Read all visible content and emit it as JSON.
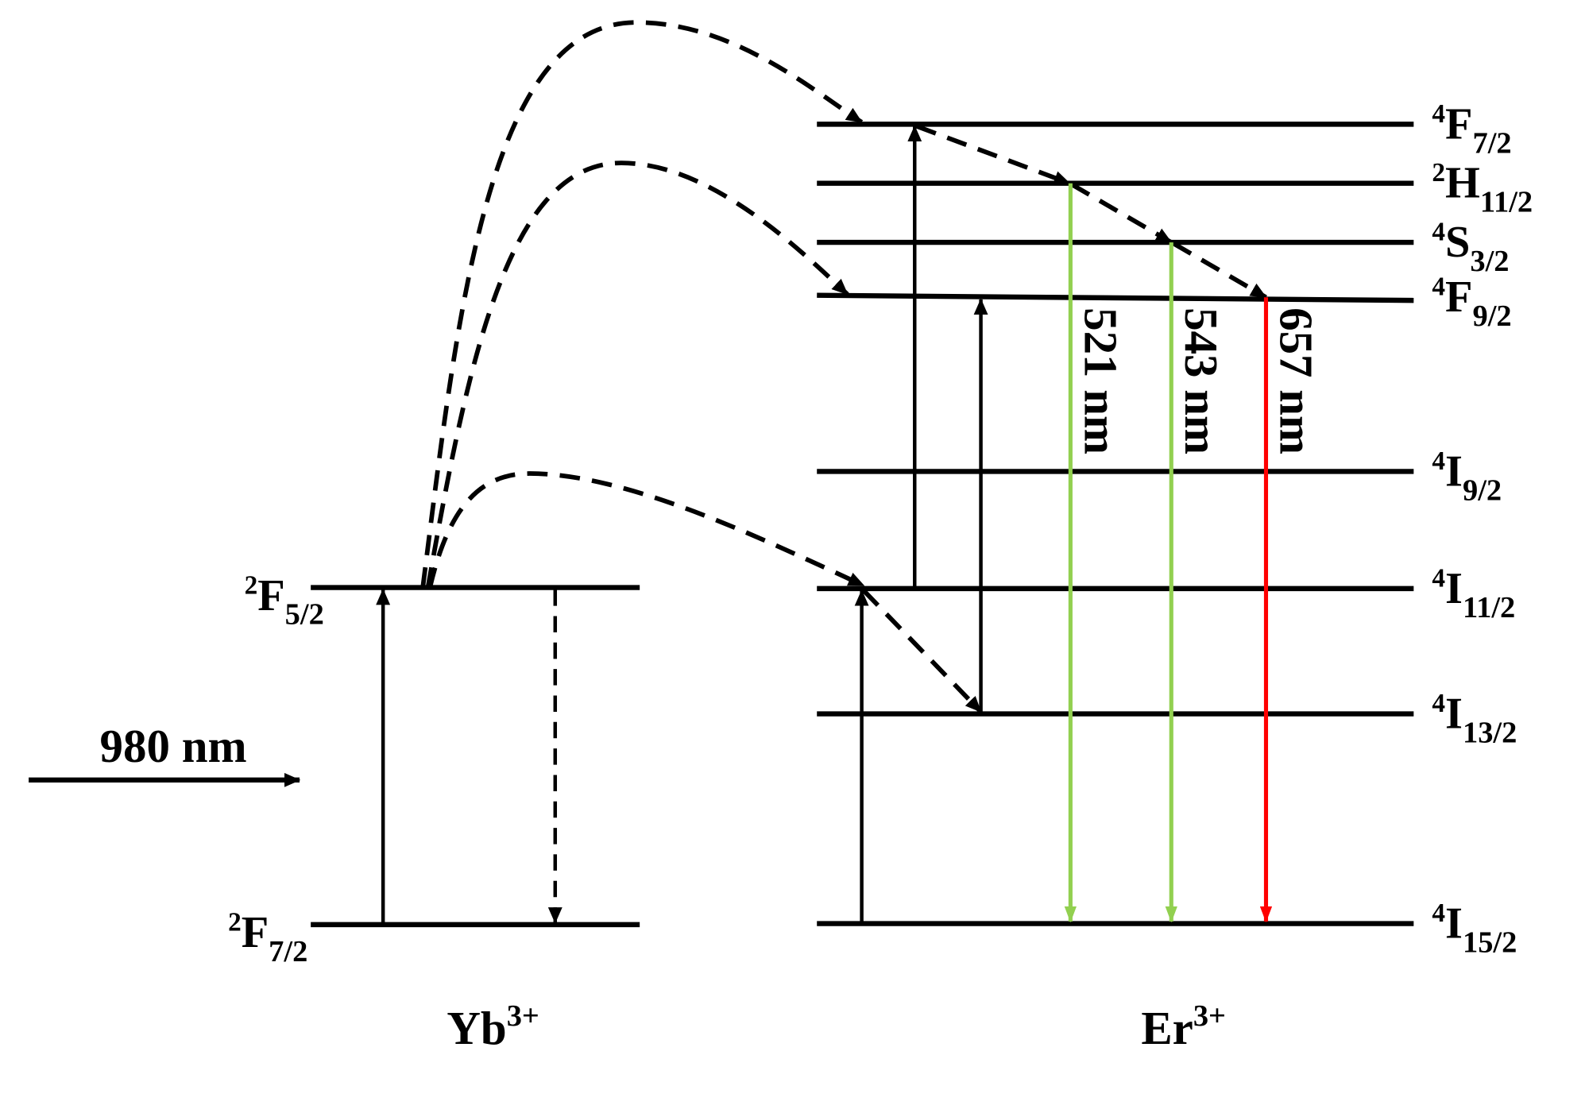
{
  "colors": {
    "line": "#000000",
    "green": "#92d050",
    "red": "#ff0000"
  },
  "yb": {
    "ion": {
      "base": "Yb",
      "charge": "3+"
    },
    "levels": [
      {
        "id": "2F5/2",
        "sup": "2",
        "term": "F",
        "sub": "5/2"
      },
      {
        "id": "2F7/2",
        "sup": "2",
        "term": "F",
        "sub": "7/2"
      }
    ]
  },
  "er": {
    "ion": {
      "base": "Er",
      "charge": "3+"
    },
    "levels": [
      {
        "id": "4F7/2",
        "sup": "4",
        "term": "F",
        "sub": "7/2"
      },
      {
        "id": "2H11/2",
        "sup": "2",
        "term": "H",
        "sub": "11/2"
      },
      {
        "id": "4S3/2",
        "sup": "4",
        "term": "S",
        "sub": "3/2"
      },
      {
        "id": "4F9/2",
        "sup": "4",
        "term": "F",
        "sub": "9/2"
      },
      {
        "id": "4I9/2",
        "sup": "4",
        "term": "I",
        "sub": "9/2"
      },
      {
        "id": "4I11/2",
        "sup": "4",
        "term": "I",
        "sub": "11/2"
      },
      {
        "id": "4I13/2",
        "sup": "4",
        "term": "I",
        "sub": "13/2"
      },
      {
        "id": "4I15/2",
        "sup": "4",
        "term": "I",
        "sub": "15/2"
      }
    ]
  },
  "excitation": {
    "label": "980 nm"
  },
  "emissions": [
    {
      "label": "521 nm",
      "from": "2H11/2",
      "to": "4I15/2",
      "color": "green"
    },
    {
      "label": "543 nm",
      "from": "4S3/2",
      "to": "4I15/2",
      "color": "green"
    },
    {
      "label": "657 nm",
      "from": "4F9/2",
      "to": "4I15/2",
      "color": "red"
    }
  ]
}
